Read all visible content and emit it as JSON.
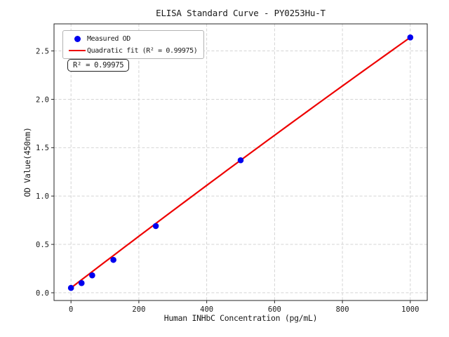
{
  "chart_data": {
    "type": "scatter",
    "title": "ELISA Standard Curve - PY0253Hu-T",
    "xlabel": "Human INHbC Concentration (pg/mL)",
    "ylabel": "OD Value(450nm)",
    "xlim": [
      -50,
      1050
    ],
    "ylim": [
      -0.08,
      2.78
    ],
    "xticks": [
      0,
      200,
      400,
      600,
      800,
      1000
    ],
    "yticks": [
      0.0,
      0.5,
      1.0,
      1.5,
      2.0,
      2.5
    ],
    "grid": true,
    "legend_position": "upper left",
    "series": [
      {
        "name": "Measured OD",
        "kind": "scatter",
        "color": "#0000ee",
        "x": [
          0,
          31.2,
          62.5,
          125,
          250,
          500,
          1000
        ],
        "y": [
          0.05,
          0.1,
          0.18,
          0.34,
          0.69,
          1.37,
          2.64
        ]
      },
      {
        "name": "Quadratic fit (R² = 0.99975)",
        "kind": "line",
        "color": "#ee0000",
        "fit": "quadratic",
        "r_squared": 0.99975
      }
    ],
    "annotation": "R² = 0.99975"
  }
}
